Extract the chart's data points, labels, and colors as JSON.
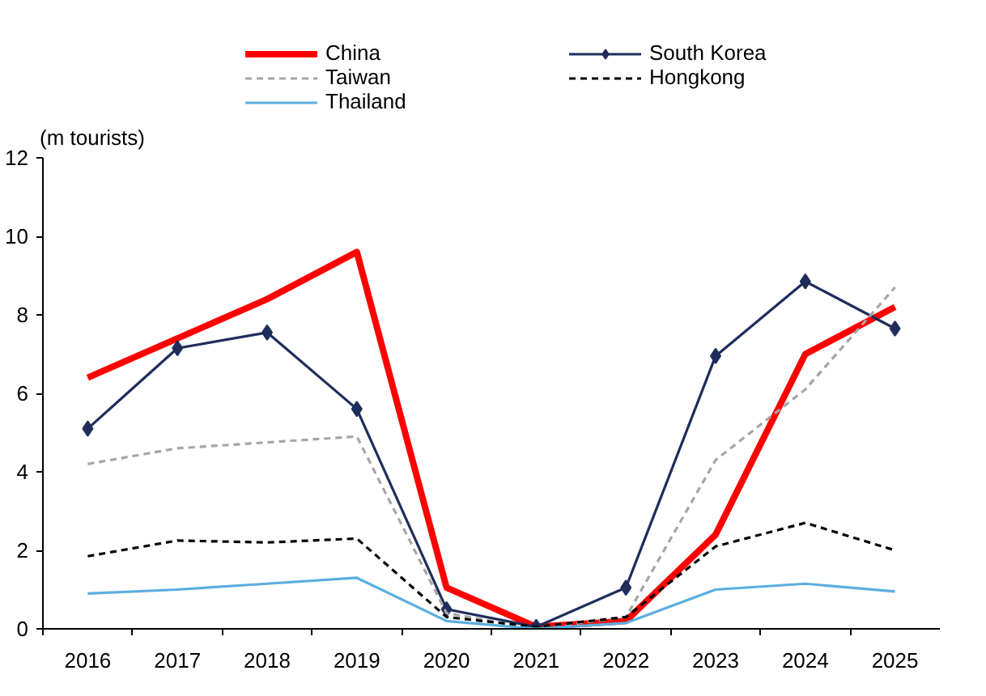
{
  "chart_data": {
    "type": "line",
    "ylabel": "(m tourists)",
    "categories": [
      "2016",
      "2017",
      "2018",
      "2019",
      "2020",
      "2021",
      "2022",
      "2023",
      "2024",
      "2025"
    ],
    "ylim": [
      0,
      12
    ],
    "yticks": [
      0,
      2,
      4,
      6,
      8,
      10,
      12
    ],
    "grid": false,
    "legend": "top",
    "series": [
      {
        "name": "China",
        "color": "#ff0000",
        "line_style": "solid",
        "marker": "none",
        "values": [
          6.4,
          7.4,
          8.4,
          9.6,
          1.05,
          0.05,
          0.2,
          2.4,
          7.0,
          8.2
        ]
      },
      {
        "name": "South Korea",
        "color": "#1f2d5c",
        "line_style": "solid",
        "marker": "diamond",
        "values": [
          5.1,
          7.15,
          7.55,
          5.6,
          0.5,
          0.05,
          1.05,
          6.95,
          8.85,
          7.65
        ]
      },
      {
        "name": "Taiwan",
        "color": "#a6a6a6",
        "line_style": "dashed",
        "marker": "none",
        "values": [
          4.2,
          4.6,
          4.75,
          4.9,
          0.4,
          0.0,
          0.3,
          4.3,
          6.1,
          8.7
        ]
      },
      {
        "name": "Hongkong",
        "color": "#000000",
        "line_style": "dashed",
        "marker": "none",
        "values": [
          1.85,
          2.25,
          2.2,
          2.3,
          0.3,
          0.05,
          0.3,
          2.1,
          2.7,
          2.0
        ]
      },
      {
        "name": "Thailand",
        "color": "#5aaee0",
        "line_style": "solid",
        "marker": "none",
        "values": [
          0.9,
          1.0,
          1.15,
          1.3,
          0.2,
          0.0,
          0.15,
          1.0,
          1.15,
          0.95
        ]
      }
    ]
  }
}
